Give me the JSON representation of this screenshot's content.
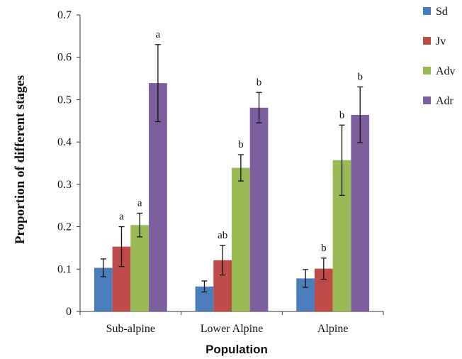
{
  "chart_data": {
    "type": "bar",
    "xlabel": "Population",
    "ylabel": "Proportion of different stages",
    "ylim": [
      0,
      0.7
    ],
    "yticks": [
      "0",
      "0.1",
      "0.2",
      "0.3",
      "0.4",
      "0.5",
      "0.6",
      "0.7"
    ],
    "categories": [
      "Sub-alpine",
      "Lower Alpine",
      "Alpine"
    ],
    "legend_position": "right",
    "grid": false,
    "series": [
      {
        "name": "Sd",
        "color": "#4a7ebb",
        "values": [
          0.103,
          0.059,
          0.078
        ],
        "errors": [
          0.021,
          0.013,
          0.021
        ],
        "labels": [
          "",
          "",
          ""
        ]
      },
      {
        "name": "Jv",
        "color": "#be4b48",
        "values": [
          0.153,
          0.121,
          0.101
        ],
        "errors": [
          0.047,
          0.035,
          0.025
        ],
        "labels": [
          "a",
          "ab",
          "b"
        ]
      },
      {
        "name": "Adv",
        "color": "#98b954",
        "values": [
          0.204,
          0.339,
          0.357
        ],
        "errors": [
          0.028,
          0.031,
          0.083
        ],
        "labels": [
          "a",
          "b",
          "b"
        ]
      },
      {
        "name": "Adr",
        "color": "#7d5fa0",
        "values": [
          0.539,
          0.481,
          0.464
        ],
        "errors": [
          0.091,
          0.036,
          0.066
        ],
        "labels": [
          "a",
          "b",
          "b"
        ]
      }
    ]
  }
}
